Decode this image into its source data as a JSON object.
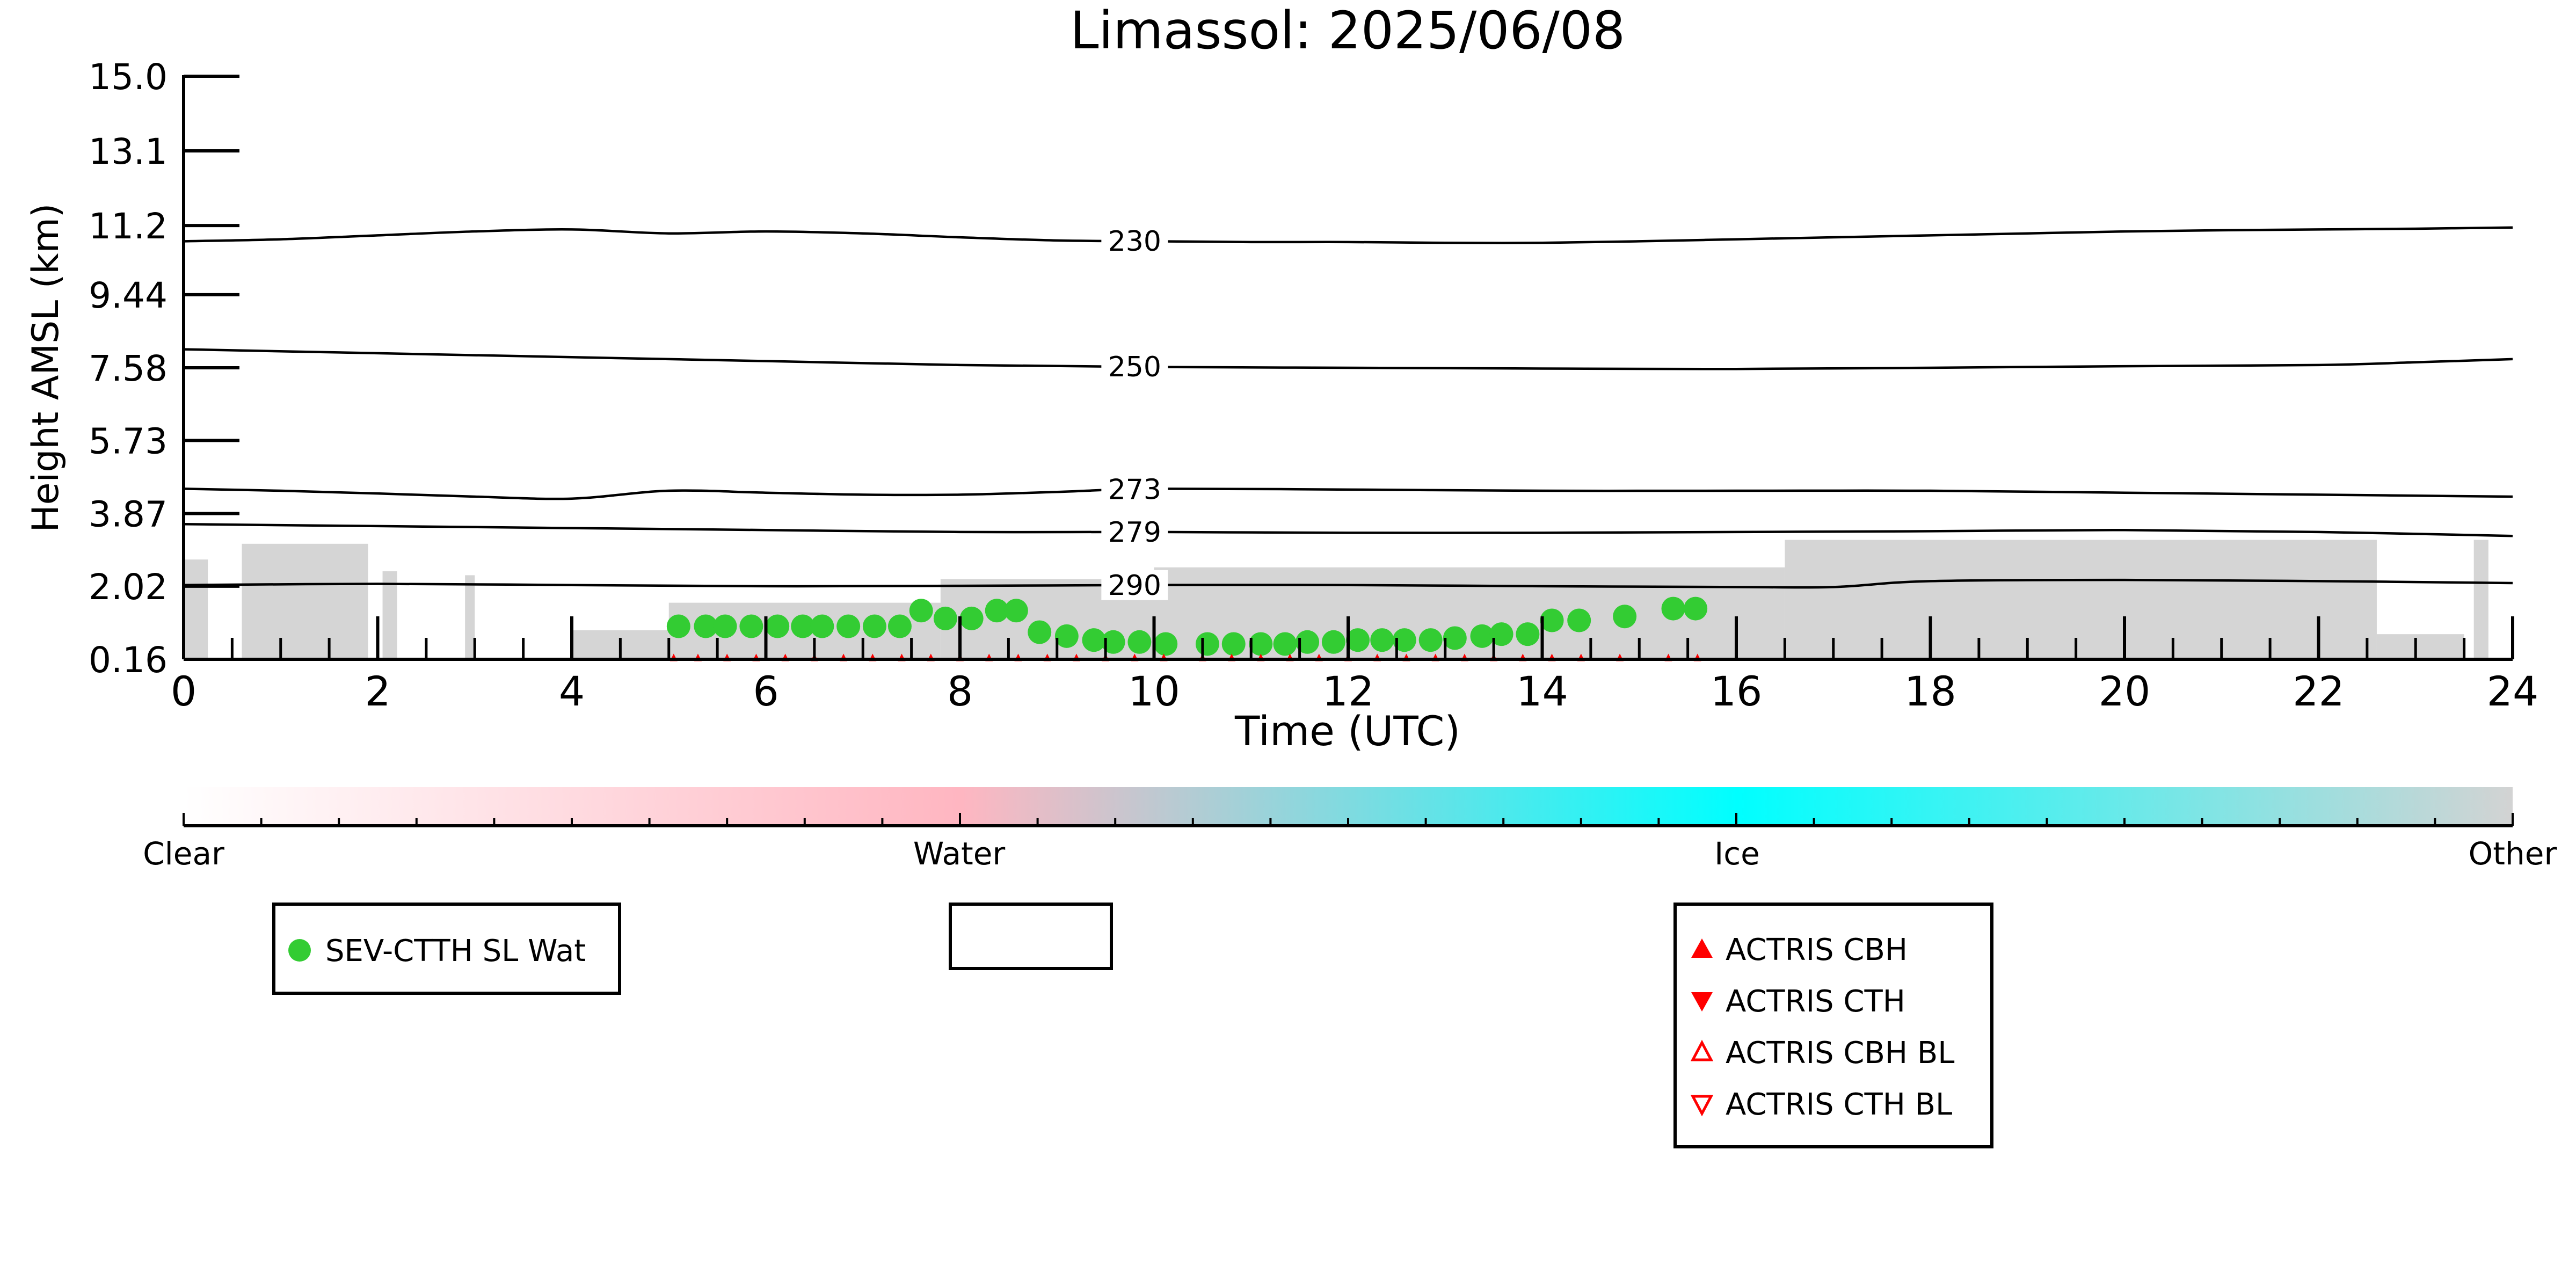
{
  "chart_data": {
    "type": "scatter",
    "title": "Limassol: 2025/06/08",
    "xlabel": "Time (UTC)",
    "ylabel": "Height AMSL (km)",
    "xlim": [
      0,
      24
    ],
    "ylim": [
      0.16,
      15.0
    ],
    "x_ticks": [
      "0",
      "2",
      "4",
      "6",
      "8",
      "10",
      "12",
      "14",
      "16",
      "18",
      "20",
      "22",
      "24"
    ],
    "y_ticks": [
      "0.16",
      "2.02",
      "3.87",
      "5.73",
      "7.58",
      "9.44",
      "11.2",
      "13.1",
      "15.0"
    ],
    "grid": false,
    "colors": {
      "sev_points": "#33cc33",
      "actris": "#ff0000",
      "backscatter": "#d3d3d3",
      "contour": "#000000"
    },
    "contours": [
      {
        "label": "230",
        "x": [
          0,
          1,
          2,
          3,
          4,
          5,
          6,
          7,
          8,
          9,
          10,
          11,
          12,
          13,
          14,
          15,
          16,
          17,
          18,
          19,
          20,
          21,
          22,
          23,
          24
        ],
        "y": [
          10.8,
          10.85,
          10.95,
          11.05,
          11.1,
          11.0,
          11.05,
          11.0,
          10.9,
          10.82,
          10.8,
          10.78,
          10.78,
          10.76,
          10.76,
          10.8,
          10.85,
          10.9,
          10.95,
          11.0,
          11.05,
          11.08,
          11.1,
          11.12,
          11.15
        ]
      },
      {
        "label": "250",
        "x": [
          0,
          2,
          4,
          6,
          8,
          10,
          12,
          14,
          16,
          18,
          20,
          22,
          23,
          24
        ],
        "y": [
          8.05,
          7.95,
          7.85,
          7.75,
          7.65,
          7.6,
          7.58,
          7.56,
          7.55,
          7.58,
          7.62,
          7.65,
          7.72,
          7.8
        ]
      },
      {
        "label": "273",
        "x": [
          0,
          1,
          2,
          3,
          4,
          5,
          6,
          7,
          8,
          9,
          10,
          12,
          14,
          16,
          18,
          20,
          22,
          24
        ],
        "y": [
          4.5,
          4.45,
          4.38,
          4.3,
          4.25,
          4.45,
          4.4,
          4.35,
          4.35,
          4.42,
          4.5,
          4.48,
          4.45,
          4.45,
          4.45,
          4.4,
          4.35,
          4.3
        ]
      },
      {
        "label": "279",
        "x": [
          0,
          2,
          4,
          6,
          8,
          10,
          12,
          14,
          16,
          18,
          20,
          22,
          24
        ],
        "y": [
          3.6,
          3.55,
          3.5,
          3.45,
          3.4,
          3.4,
          3.38,
          3.38,
          3.4,
          3.42,
          3.45,
          3.4,
          3.3
        ]
      },
      {
        "label": "290",
        "x": [
          0,
          2,
          4,
          6,
          8,
          10,
          12,
          14,
          16,
          17,
          18,
          20,
          22,
          24
        ],
        "y": [
          2.05,
          2.08,
          2.05,
          2.02,
          2.03,
          2.05,
          2.05,
          2.02,
          2.0,
          2.0,
          2.15,
          2.18,
          2.15,
          2.1
        ]
      }
    ],
    "series": [
      {
        "name": "SEV-CTTH SL Wat",
        "marker": "circle",
        "x": [
          5.1,
          5.38,
          5.58,
          5.85,
          6.12,
          6.38,
          6.58,
          6.85,
          7.12,
          7.38,
          7.6,
          7.85,
          8.12,
          8.38,
          8.58,
          8.82,
          9.1,
          9.38,
          9.58,
          9.85,
          10.12,
          10.55,
          10.82,
          11.1,
          11.35,
          11.58,
          11.85,
          12.1,
          12.35,
          12.58,
          12.85,
          13.1,
          13.38,
          13.58,
          13.85,
          14.1,
          14.38,
          14.85,
          15.35,
          15.58
        ],
        "y": [
          1.0,
          1.0,
          1.0,
          1.0,
          1.0,
          1.0,
          1.0,
          1.0,
          1.0,
          1.0,
          1.4,
          1.2,
          1.2,
          1.4,
          1.4,
          0.85,
          0.75,
          0.65,
          0.6,
          0.6,
          0.55,
          0.55,
          0.55,
          0.55,
          0.55,
          0.6,
          0.6,
          0.65,
          0.65,
          0.65,
          0.65,
          0.7,
          0.75,
          0.8,
          0.8,
          1.15,
          1.15,
          1.25,
          1.45,
          1.45
        ]
      },
      {
        "name": "ACTRIS CBH",
        "marker": "triangle-up",
        "x": [
          5.05,
          5.3,
          5.6,
          5.9,
          6.2,
          6.5,
          6.8,
          7.1,
          7.4,
          7.7,
          8.0,
          8.3,
          8.6,
          8.9,
          9.2,
          9.5,
          9.8,
          10.1,
          10.5,
          10.8,
          11.1,
          11.4,
          11.7,
          12.0,
          12.3,
          12.6,
          12.9,
          13.2,
          13.5,
          13.8,
          14.1,
          14.4,
          14.8,
          15.3,
          15.6
        ],
        "y": [
          0.18,
          0.18,
          0.18,
          0.18,
          0.18,
          0.18,
          0.18,
          0.18,
          0.18,
          0.18,
          0.18,
          0.18,
          0.18,
          0.18,
          0.18,
          0.18,
          0.18,
          0.18,
          0.18,
          0.18,
          0.18,
          0.18,
          0.18,
          0.18,
          0.18,
          0.18,
          0.18,
          0.18,
          0.18,
          0.18,
          0.18,
          0.18,
          0.18,
          0.18,
          0.18
        ]
      },
      {
        "name": "ACTRIS CTH",
        "marker": "triangle-down",
        "x": [],
        "y": []
      },
      {
        "name": "ACTRIS CBH BL",
        "marker": "triangle-up-open",
        "x": [],
        "y": []
      },
      {
        "name": "ACTRIS CTH BL",
        "marker": "triangle-down-open",
        "x": [],
        "y": []
      }
    ],
    "backscatter_regions": [
      {
        "x": [
          0.0,
          0.25
        ],
        "y": [
          0.16,
          2.7
        ]
      },
      {
        "x": [
          0.6,
          1.9
        ],
        "y": [
          0.16,
          3.1
        ]
      },
      {
        "x": [
          2.05,
          2.2
        ],
        "y": [
          0.16,
          2.4
        ]
      },
      {
        "x": [
          2.9,
          3.0
        ],
        "y": [
          0.16,
          2.3
        ]
      },
      {
        "x": [
          4.0,
          5.0
        ],
        "y": [
          0.16,
          0.9
        ]
      },
      {
        "x": [
          5.0,
          7.8
        ],
        "y": [
          0.16,
          1.6
        ]
      },
      {
        "x": [
          7.8,
          10.0
        ],
        "y": [
          0.16,
          2.2
        ]
      },
      {
        "x": [
          10.0,
          16.5
        ],
        "y": [
          0.16,
          2.5
        ]
      },
      {
        "x": [
          16.5,
          22.6
        ],
        "y": [
          0.16,
          3.2
        ]
      },
      {
        "x": [
          22.6,
          23.5
        ],
        "y": [
          0.16,
          0.8
        ]
      },
      {
        "x": [
          23.6,
          23.75
        ],
        "y": [
          0.16,
          3.2
        ]
      }
    ],
    "colorbar": {
      "labels": [
        "Clear",
        "Water",
        "Ice",
        "Other"
      ],
      "positions": [
        0,
        0.333,
        0.667,
        1.0
      ],
      "colors": [
        "#ffffff",
        "#ffb6c1",
        "#00ffff",
        "#d3d3d3"
      ]
    },
    "legend": {
      "placement": "below-plot",
      "boxes": [
        {
          "entries": [
            "SEV-CTTH SL Wat"
          ]
        },
        {
          "entries": []
        },
        {
          "entries": [
            "ACTRIS CBH",
            "ACTRIS CTH",
            "ACTRIS CBH BL",
            "ACTRIS CTH BL"
          ]
        }
      ]
    }
  }
}
